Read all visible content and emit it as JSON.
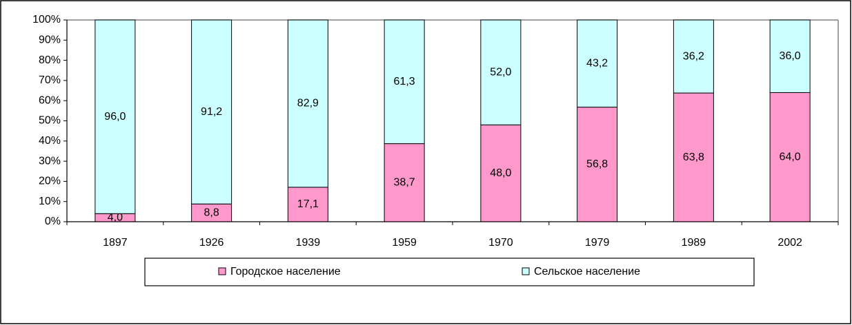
{
  "chart_data": {
    "type": "stacked_bar",
    "categories": [
      "1897",
      "1926",
      "1939",
      "1959",
      "1970",
      "1979",
      "1989",
      "2002"
    ],
    "series": [
      {
        "name": "Городское население",
        "color": "#ff99cc",
        "values": [
          4.0,
          8.8,
          17.1,
          38.7,
          48.0,
          56.8,
          63.8,
          64.0
        ],
        "value_labels": [
          "4,0",
          "8,8",
          "17,1",
          "38,7",
          "48,0",
          "56,8",
          "63,8",
          "64,0"
        ]
      },
      {
        "name": "Сельское население",
        "color": "#ccffff",
        "values": [
          96.0,
          91.2,
          82.9,
          61.3,
          52.0,
          43.2,
          36.2,
          36.0
        ],
        "value_labels": [
          "96,0",
          "91,2",
          "82,9",
          "61,3",
          "52,0",
          "43,2",
          "36,2",
          "36,0"
        ]
      }
    ],
    "ylim": [
      0,
      100
    ],
    "yticks": [
      {
        "value": 0,
        "label": "0%"
      },
      {
        "value": 10,
        "label": "10%"
      },
      {
        "value": 20,
        "label": "20%"
      },
      {
        "value": 30,
        "label": "30%"
      },
      {
        "value": 40,
        "label": "40%"
      },
      {
        "value": 50,
        "label": "50%"
      },
      {
        "value": 60,
        "label": "60%"
      },
      {
        "value": 70,
        "label": "70%"
      },
      {
        "value": 80,
        "label": "80%"
      },
      {
        "value": 90,
        "label": "90%"
      },
      {
        "value": 100,
        "label": "100%"
      }
    ],
    "legend": "bottom"
  }
}
